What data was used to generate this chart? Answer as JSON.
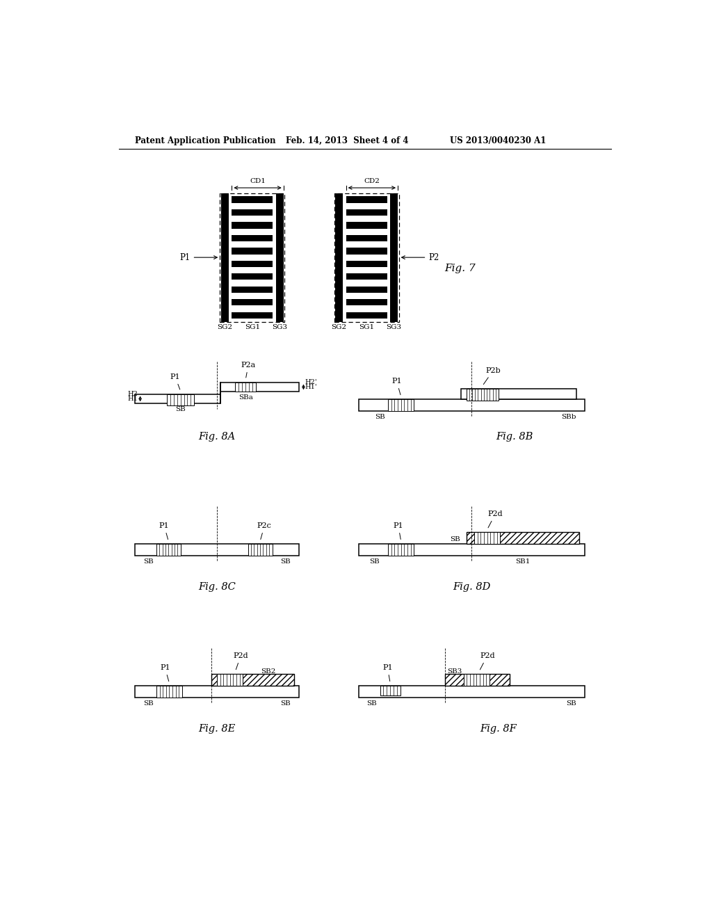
{
  "header_left": "Patent Application Publication",
  "header_mid": "Feb. 14, 2013  Sheet 4 of 4",
  "header_right": "US 2013/0040230 A1",
  "bg_color": "#ffffff",
  "fig7_label": "Fig. 7",
  "fig8a_label": "Fig. 8A",
  "fig8b_label": "Fig. 8B",
  "fig8c_label": "Fig. 8C",
  "fig8d_label": "Fig. 8D",
  "fig8e_label": "Fig. 8E",
  "fig8f_label": "Fig. 8F"
}
